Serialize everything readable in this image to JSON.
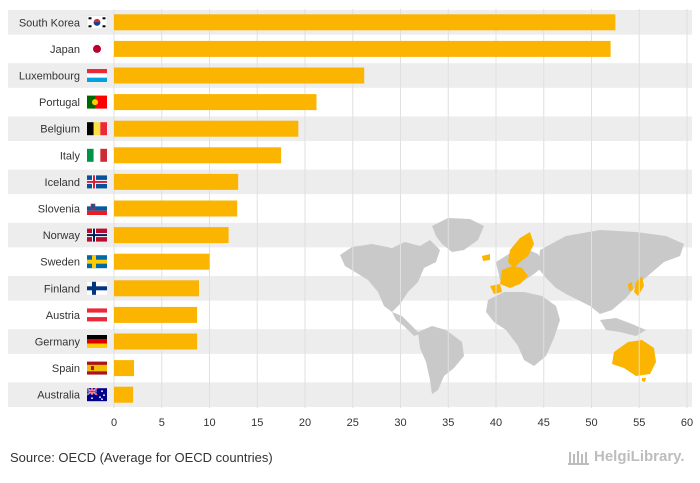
{
  "chart_data": {
    "type": "bar",
    "orientation": "horizontal",
    "categories": [
      "South Korea",
      "Japan",
      "Luxembourg",
      "Portugal",
      "Belgium",
      "Italy",
      "Iceland",
      "Slovenia",
      "Norway",
      "Sweden",
      "Finland",
      "Austria",
      "Germany",
      "Spain",
      "Australia"
    ],
    "values": [
      52.5,
      52.0,
      26.2,
      21.2,
      19.3,
      17.5,
      13.0,
      12.9,
      12.0,
      10.0,
      8.9,
      8.7,
      8.7,
      2.1,
      2.0
    ],
    "xlim": [
      0,
      60
    ],
    "xticks": [
      0,
      5,
      10,
      15,
      20,
      25,
      30,
      35,
      40,
      45,
      50,
      55,
      60
    ],
    "grid": true,
    "bar_color": "#FBB400"
  },
  "flags": [
    "south-korea-flag",
    "japan-flag",
    "luxembourg-flag",
    "portugal-flag",
    "belgium-flag",
    "italy-flag",
    "iceland-flag",
    "slovenia-flag",
    "norway-flag",
    "sweden-flag",
    "finland-flag",
    "austria-flag",
    "germany-flag",
    "spain-flag",
    "australia-flag"
  ],
  "source": "Source: OECD (Average for OECD countries)",
  "logo": {
    "text": "HelgiLibrary.",
    "icon": "library-columns-icon"
  },
  "colors": {
    "bar": "#FBB400",
    "band": "#EDEDED",
    "map": "#C9C9C9",
    "grid": "#E0E0E0"
  }
}
